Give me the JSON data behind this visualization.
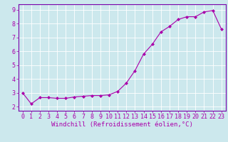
{
  "x": [
    0,
    1,
    2,
    3,
    4,
    5,
    6,
    7,
    8,
    9,
    10,
    11,
    12,
    13,
    14,
    15,
    16,
    17,
    18,
    19,
    20,
    21,
    22,
    23
  ],
  "y": [
    3.0,
    2.2,
    2.65,
    2.65,
    2.6,
    2.6,
    2.7,
    2.75,
    2.8,
    2.8,
    2.85,
    3.1,
    3.7,
    4.6,
    5.8,
    6.5,
    7.4,
    7.8,
    8.3,
    8.5,
    8.5,
    8.85,
    8.95,
    7.6
  ],
  "line_color": "#aa00aa",
  "marker": "D",
  "marker_size": 2.0,
  "bg_color": "#cce8ed",
  "grid_color": "#ffffff",
  "xlabel": "Windchill (Refroidissement éolien,°C)",
  "ylabel_ticks": [
    2,
    3,
    4,
    5,
    6,
    7,
    8,
    9
  ],
  "xlim": [
    -0.5,
    23.5
  ],
  "ylim": [
    1.7,
    9.4
  ],
  "xlabel_fontsize": 6.5,
  "tick_fontsize": 6.0,
  "axis_label_color": "#aa00aa",
  "tick_color": "#aa00aa",
  "spine_color": "#7700aa"
}
